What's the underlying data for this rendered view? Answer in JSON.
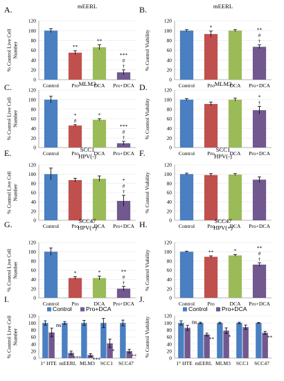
{
  "colors": {
    "control": "#4a7fc1",
    "pro": "#c0504d",
    "dca": "#9bbb59",
    "proDca": "#71588f"
  },
  "chart_data": [
    {
      "panel": "A.",
      "type": "bar",
      "title": [
        "mEERL"
      ],
      "ylabel": [
        "% Control Live Cell",
        "Number"
      ],
      "ylim": [
        0,
        120
      ],
      "yticks": [
        0,
        20,
        40,
        60,
        80,
        100,
        120
      ],
      "grid": true,
      "categories": [
        "Control",
        "Pro",
        "DCA",
        "Pro+DCA"
      ],
      "values": [
        100,
        55,
        66,
        15
      ],
      "errors": [
        4,
        4,
        5,
        5
      ],
      "annotations": [
        [],
        [
          "**"
        ],
        [
          "**"
        ],
        [
          "***",
          "#",
          "†"
        ]
      ]
    },
    {
      "panel": "B.",
      "type": "bar",
      "title": [
        "mEERL"
      ],
      "ylabel": [
        "% Control Viability"
      ],
      "ylim": [
        0,
        120
      ],
      "yticks": [
        0,
        20,
        40,
        60,
        80,
        100,
        120
      ],
      "grid": true,
      "categories": [
        "Control",
        "Pro",
        "DCA",
        "Pro+DCA"
      ],
      "values": [
        100,
        93,
        100,
        67
      ],
      "errors": [
        2,
        6,
        2,
        4
      ],
      "annotations": [
        [],
        [
          "*"
        ],
        [],
        [
          "**",
          "#",
          "†"
        ]
      ]
    },
    {
      "panel": "C.",
      "type": "bar",
      "title": [
        "MLM3"
      ],
      "ylabel": [
        "% Control Live Cell",
        "Number"
      ],
      "ylim": [
        0,
        120
      ],
      "yticks": [
        0,
        20,
        40,
        60,
        80,
        100,
        120
      ],
      "grid": true,
      "categories": [
        "Control",
        "Pro",
        "DCA",
        "Pro+DCA"
      ],
      "values": [
        100,
        46,
        58,
        9
      ],
      "errors": [
        7,
        2,
        2,
        4
      ],
      "annotations": [
        [],
        [
          "*",
          "#"
        ],
        [
          "*"
        ],
        [
          "***",
          "#",
          "†"
        ]
      ]
    },
    {
      "panel": "D.",
      "type": "bar",
      "title": [
        "MLM3"
      ],
      "ylabel": [
        "% Control Viability"
      ],
      "ylim": [
        0,
        120
      ],
      "yticks": [
        0,
        20,
        40,
        60,
        80,
        100,
        120
      ],
      "grid": true,
      "categories": [
        "Control",
        "Pro",
        "DCA",
        "Pro+DCA"
      ],
      "values": [
        100,
        91,
        100,
        78
      ],
      "errors": [
        2,
        4,
        3,
        8
      ],
      "annotations": [
        [],
        [],
        [],
        [
          "*",
          "†"
        ]
      ]
    },
    {
      "panel": "E.",
      "type": "bar",
      "title": [
        "SCC1",
        "HPV(-)"
      ],
      "ylabel": [
        "% Control Live Cell",
        "Number"
      ],
      "ylim": [
        0,
        120
      ],
      "yticks": [
        0,
        20,
        40,
        60,
        80,
        100,
        120
      ],
      "grid": true,
      "categories": [
        "Control",
        "Pro",
        "DCA",
        "Pro+DCA"
      ],
      "values": [
        100,
        87,
        90,
        42
      ],
      "errors": [
        13,
        4,
        6,
        12
      ],
      "annotations": [
        [],
        [],
        [],
        [
          "*",
          "#",
          "†"
        ]
      ]
    },
    {
      "panel": "F.",
      "type": "bar",
      "title": [
        "SCC1",
        "HPV(-)"
      ],
      "ylabel": [
        "% Control Viability"
      ],
      "ylim": [
        0,
        120
      ],
      "yticks": [
        0,
        20,
        40,
        60,
        80,
        100,
        120
      ],
      "grid": true,
      "categories": [
        "Control",
        "Pro",
        "DCA",
        "Pro+DCA"
      ],
      "values": [
        100,
        98,
        99,
        88
      ],
      "errors": [
        2,
        3,
        2,
        6
      ],
      "annotations": [
        [],
        [],
        [],
        []
      ]
    },
    {
      "panel": "G.",
      "type": "bar",
      "title": [
        "SCC47",
        "HPV(+)"
      ],
      "ylabel": [
        "% Control Live Cell",
        "Number"
      ],
      "ylim": [
        0,
        120
      ],
      "yticks": [
        0,
        20,
        40,
        60,
        80,
        100,
        120
      ],
      "grid": true,
      "categories": [
        "Control",
        "Pro",
        "DCA",
        "Pro+DCA"
      ],
      "values": [
        100,
        43,
        43,
        20
      ],
      "errors": [
        8,
        3,
        4,
        5
      ],
      "annotations": [
        [],
        [
          "*"
        ],
        [
          "*"
        ],
        [
          "**",
          "#",
          "†"
        ]
      ]
    },
    {
      "panel": "H.",
      "type": "bar",
      "title": [
        "SCC47",
        "HPV(+)"
      ],
      "ylabel": [
        "% Control Viability"
      ],
      "ylim": [
        0,
        120
      ],
      "yticks": [
        0,
        20,
        40,
        60,
        80,
        100,
        120
      ],
      "grid": true,
      "categories": [
        "Control",
        "Pro",
        "DCA",
        "Pro+DCA"
      ],
      "values": [
        100,
        89,
        92,
        72
      ],
      "errors": [
        1,
        2,
        2,
        4
      ],
      "annotations": [
        [],
        [
          "**"
        ],
        [
          "*"
        ],
        [
          "**",
          "#",
          "†"
        ]
      ]
    },
    {
      "panel": "I.",
      "type": "bar",
      "title": [],
      "ylabel": [
        "% Control Live Cell",
        "Number"
      ],
      "ylim": [
        0,
        120
      ],
      "yticks": [
        0,
        20,
        40,
        60,
        80,
        100,
        120
      ],
      "grid": true,
      "legend": "top",
      "categories": [
        "1° HTE",
        "mEERL",
        "MLM3",
        "SCC1",
        "SCC47"
      ],
      "series": [
        {
          "name": "Control",
          "values": [
            100,
            100,
            100,
            100,
            100
          ],
          "errors": [
            6,
            4,
            7,
            13,
            8
          ],
          "annotations": [
            [],
            [],
            [],
            [],
            []
          ]
        },
        {
          "name": "Pro+DCA",
          "values": [
            73,
            15,
            9,
            42,
            20
          ],
          "errors": [
            12,
            5,
            4,
            12,
            5
          ],
          "annotations": [
            [
              "ns"
            ],
            [
              "***"
            ],
            [
              "***"
            ],
            [
              "*"
            ],
            [
              "**"
            ]
          ]
        }
      ]
    },
    {
      "panel": "J.",
      "type": "bar",
      "title": [],
      "ylabel": [
        "% Control Viability"
      ],
      "ylim": [
        0,
        120
      ],
      "yticks": [
        0,
        20,
        40,
        60,
        80,
        100,
        120
      ],
      "grid": true,
      "legend": "top",
      "categories": [
        "1° HTE",
        "mEERL",
        "MLM3",
        "SCC1",
        "SCC47"
      ],
      "series": [
        {
          "name": "Control",
          "values": [
            100,
            100,
            100,
            100,
            100
          ],
          "errors": [
            6,
            2,
            2,
            2,
            1
          ],
          "annotations": [
            [],
            [],
            [],
            [],
            []
          ]
        },
        {
          "name": "Pro+DCA",
          "values": [
            86,
            67,
            78,
            88,
            72
          ],
          "errors": [
            7,
            4,
            8,
            6,
            4
          ],
          "annotations": [
            [
              "ns"
            ],
            [
              "**"
            ],
            [
              "*"
            ],
            [],
            [
              "**"
            ]
          ]
        }
      ]
    }
  ]
}
